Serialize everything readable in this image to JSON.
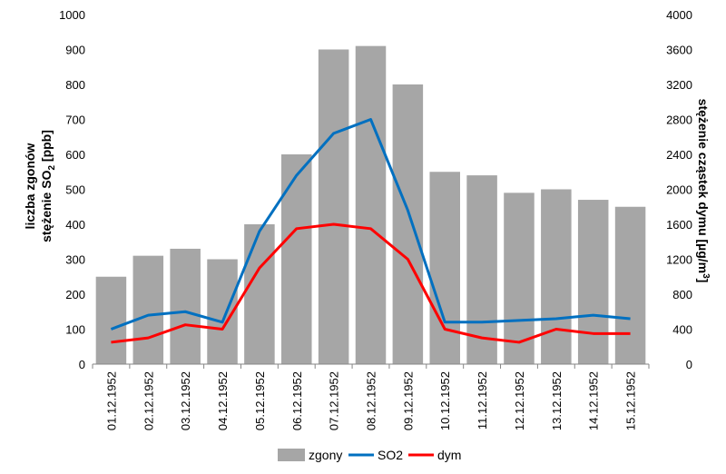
{
  "chart_data": {
    "type": "bar",
    "categories": [
      "01.12.1952",
      "02.12.1952",
      "03.12.1952",
      "04.12.1952",
      "05.12.1952",
      "06.12.1952",
      "07.12.1952",
      "08.12.1952",
      "09.12.1952",
      "10.12.1952",
      "11.12.1952",
      "12.12.1952",
      "13.12.1952",
      "14.12.1952",
      "15.12.1952"
    ],
    "series": [
      {
        "name": "zgony",
        "kind": "bar",
        "axis": "left",
        "color": "#a6a6a6",
        "values": [
          250,
          310,
          330,
          300,
          400,
          600,
          900,
          910,
          800,
          550,
          540,
          490,
          500,
          470,
          450
        ]
      },
      {
        "name": "SO2",
        "kind": "line",
        "axis": "left",
        "color": "#0070c0",
        "values": [
          100,
          140,
          150,
          120,
          380,
          540,
          660,
          700,
          440,
          120,
          120,
          125,
          130,
          140,
          130
        ]
      },
      {
        "name": "dym",
        "kind": "line",
        "axis": "right",
        "color": "#ff0000",
        "values": [
          250,
          300,
          450,
          400,
          1100,
          1550,
          1600,
          1550,
          1200,
          400,
          300,
          250,
          400,
          350,
          350
        ]
      }
    ],
    "ylabel_left_line1": "liczba zgonów",
    "ylabel_left_line2_prefix": "stężenie SO",
    "ylabel_left_line2_sub": "2",
    "ylabel_left_line2_suffix": " [ppb]",
    "ylabel_right_prefix": "stężenie cząstek dymu [µg/m",
    "ylabel_right_sup": "3",
    "ylabel_right_suffix": "]",
    "ylim_left": [
      0,
      1000
    ],
    "yticks_left": [
      "0",
      "100",
      "200",
      "300",
      "400",
      "500",
      "600",
      "700",
      "800",
      "900",
      "1000"
    ],
    "ylim_right": [
      0,
      4000
    ],
    "yticks_right": [
      "0",
      "400",
      "800",
      "1200",
      "1600",
      "2000",
      "2400",
      "2800",
      "3200",
      "3600",
      "4000"
    ],
    "grid": false,
    "legend_position": "bottom"
  }
}
